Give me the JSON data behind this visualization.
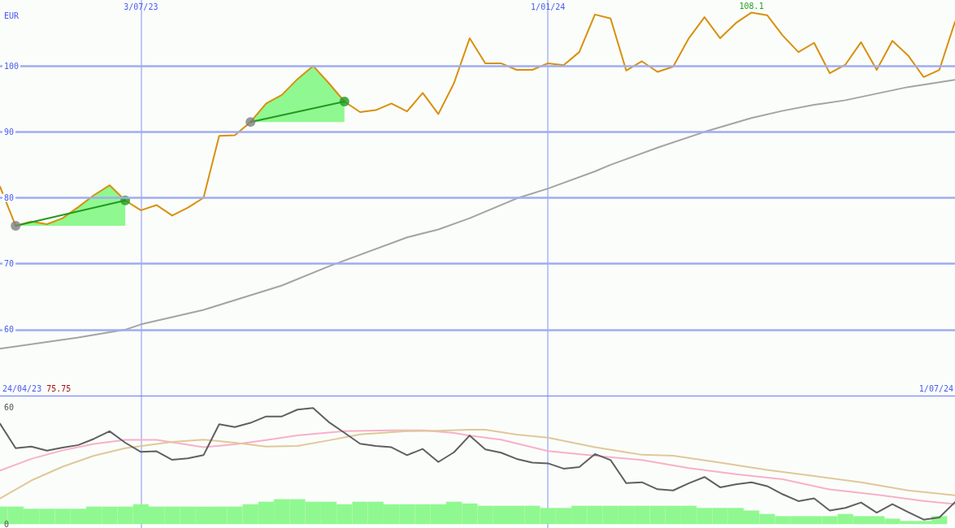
{
  "chart_data": [
    {
      "type": "line",
      "ylabel": "EUR",
      "x": [
        "2023-05-01",
        "2023-05-08",
        "2023-05-15",
        "2023-05-22",
        "2023-05-29",
        "2023-06-05",
        "2023-06-12",
        "2023-06-19",
        "2023-06-26",
        "2023-07-03",
        "2023-07-10",
        "2023-07-17",
        "2023-07-24",
        "2023-07-31",
        "2023-08-07",
        "2023-08-14",
        "2023-08-21",
        "2023-08-28",
        "2023-09-04",
        "2023-09-11",
        "2023-09-18",
        "2023-09-25",
        "2023-10-02",
        "2023-10-09",
        "2023-10-16",
        "2023-10-23",
        "2023-10-30",
        "2023-11-06",
        "2023-11-13",
        "2023-11-20",
        "2023-11-27",
        "2023-12-04",
        "2023-12-11",
        "2023-12-18",
        "2023-12-25",
        "2024-01-01",
        "2024-01-08",
        "2024-01-15",
        "2024-01-22",
        "2024-01-29",
        "2024-02-05",
        "2024-02-12",
        "2024-02-19",
        "2024-02-26",
        "2024-03-04",
        "2024-03-11",
        "2024-03-18",
        "2024-03-25",
        "2024-04-01",
        "2024-04-08",
        "2024-04-15",
        "2024-04-22",
        "2024-04-29",
        "2024-05-06",
        "2024-05-13",
        "2024-05-20",
        "2024-05-27",
        "2024-06-03",
        "2024-06-10",
        "2024-06-17",
        "2024-06-24",
        "2024-07-01"
      ],
      "xlim": [
        "2023-05-01",
        "2024-07-01"
      ],
      "xticks": [
        {
          "value": "2023-07-03",
          "label": "3/07/23"
        },
        {
          "value": "2024-01-01",
          "label": "1/01/24"
        }
      ],
      "ylim": [
        50,
        110
      ],
      "yticks": [
        60,
        70,
        80,
        90,
        100
      ],
      "grid": true,
      "marker": "none",
      "series": [
        {
          "color": "#a4a4a4",
          "x": [
            "2023-05-01",
            "2023-06-05",
            "2023-06-26",
            "2023-07-03",
            "2023-07-31",
            "2023-09-04",
            "2023-09-25",
            "2023-10-30",
            "2023-11-13",
            "2023-11-27",
            "2023-12-18",
            "2024-01-01",
            "2024-01-22",
            "2024-01-29",
            "2024-02-19",
            "2024-03-11",
            "2024-04-01",
            "2024-04-15",
            "2024-04-29",
            "2024-05-13",
            "2024-06-10",
            "2024-07-01"
          ],
          "values": [
            57.1,
            58.8,
            60.0,
            60.8,
            63.0,
            66.7,
            69.6,
            74.0,
            75.2,
            76.9,
            79.9,
            81.4,
            84.0,
            85.0,
            87.6,
            90.0,
            92.1,
            93.2,
            94.1,
            94.8,
            96.8,
            97.9
          ]
        },
        {
          "color": "#d8900c",
          "values": [
            81.7,
            75.75,
            76.4,
            76.0,
            76.9,
            78.6,
            80.4,
            81.9,
            79.6,
            78.1,
            78.9,
            77.3,
            78.5,
            80.0,
            89.4,
            89.5,
            91.5,
            94.3,
            95.6,
            98.0,
            100.0,
            97.4,
            94.6,
            93.0,
            93.3,
            94.3,
            93.1,
            95.9,
            92.7,
            97.4,
            104.2,
            100.4,
            100.4,
            99.4,
            99.4,
            100.4,
            100.1,
            102.1,
            107.8,
            107.2,
            99.3,
            100.7,
            99.1,
            99.9,
            104.2,
            107.4,
            104.2,
            106.5,
            108.1,
            107.7,
            104.6,
            102.1,
            103.5,
            98.9,
            100.2,
            103.6,
            99.4,
            103.8,
            101.6,
            98.3,
            99.4,
            106.7
          ],
          "lower": [
            null,
            75.75,
            75.75,
            75.75,
            75.75,
            75.75,
            75.75,
            75.75,
            75.75,
            null,
            null,
            null,
            null,
            null,
            null,
            null,
            91.5,
            91.5,
            91.5,
            91.5,
            91.5,
            91.5,
            91.5,
            null,
            null,
            null,
            null,
            null,
            null,
            null,
            null,
            null,
            null,
            null,
            null,
            null,
            null,
            null,
            null,
            null,
            null,
            null,
            null,
            null,
            null,
            null,
            null,
            null,
            null,
            null,
            null,
            null,
            null,
            null,
            null,
            null,
            null,
            null,
            null,
            null,
            null,
            null
          ],
          "upper": [
            null,
            75.75,
            76.4,
            76.0,
            76.9,
            78.6,
            80.4,
            81.9,
            79.6,
            null,
            null,
            null,
            null,
            null,
            null,
            null,
            91.5,
            94.3,
            95.6,
            98.0,
            100.0,
            97.4,
            94.6,
            null,
            null,
            null,
            null,
            null,
            null,
            null,
            null,
            null,
            null,
            null,
            null,
            null,
            null,
            null,
            null,
            null,
            null,
            null,
            null,
            null,
            null,
            null,
            null,
            null,
            null,
            null,
            null,
            null,
            null,
            null,
            null,
            null,
            null,
            null,
            null,
            null,
            null,
            null
          ]
        },
        {
          "type": "line",
          "color": "#229922",
          "x": [
            "2023-05-08",
            "2023-06-26"
          ],
          "values": [
            75.75,
            79.6
          ]
        },
        {
          "type": "line",
          "color": "#229922",
          "x": [
            "2023-08-21",
            "2023-10-02"
          ],
          "values": [
            91.5,
            94.6
          ]
        },
        {
          "type": "scatter",
          "color": "#808080",
          "marker": "circle",
          "x": [
            "2023-05-08",
            "2023-08-21"
          ],
          "values": [
            75.75,
            91.5
          ]
        },
        {
          "type": "scatter",
          "color": "#229922",
          "marker": "circle",
          "x": [
            "2023-06-26",
            "2023-10-02"
          ],
          "values": [
            79.6,
            94.6
          ]
        }
      ],
      "annotations": [
        "24/04/23",
        "75.75",
        "1/07/24",
        {
          "text": "108.1",
          "x": "2024-04-01",
          "y": 108.1
        }
      ]
    },
    {
      "type": "line",
      "x": [
        "2023-05-01",
        "2023-05-08",
        "2023-05-15",
        "2023-05-22",
        "2023-05-29",
        "2023-06-05",
        "2023-06-12",
        "2023-06-19",
        "2023-06-26",
        "2023-07-03",
        "2023-07-10",
        "2023-07-17",
        "2023-07-24",
        "2023-07-31",
        "2023-08-07",
        "2023-08-14",
        "2023-08-21",
        "2023-08-28",
        "2023-09-04",
        "2023-09-11",
        "2023-09-18",
        "2023-09-25",
        "2023-10-02",
        "2023-10-09",
        "2023-10-16",
        "2023-10-23",
        "2023-10-30",
        "2023-11-06",
        "2023-11-13",
        "2023-11-20",
        "2023-11-27",
        "2023-12-04",
        "2023-12-11",
        "2023-12-18",
        "2023-12-25",
        "2024-01-01",
        "2024-01-08",
        "2024-01-15",
        "2024-01-22",
        "2024-01-29",
        "2024-02-05",
        "2024-02-12",
        "2024-02-19",
        "2024-02-26",
        "2024-03-04",
        "2024-03-11",
        "2024-03-18",
        "2024-03-25",
        "2024-04-01",
        "2024-04-08",
        "2024-04-15",
        "2024-04-22",
        "2024-04-29",
        "2024-05-06",
        "2024-05-13",
        "2024-05-20",
        "2024-05-27",
        "2024-06-03",
        "2024-06-10",
        "2024-06-17",
        "2024-06-24",
        "2024-07-01"
      ],
      "xlim": [
        "2023-05-01",
        "2024-07-01"
      ],
      "xticks": [
        "2023-07-03",
        "2024-01-01"
      ],
      "ylim": [
        -2,
        66
      ],
      "yticks": [
        0,
        60
      ],
      "grid": "x",
      "marker": "none",
      "tick_labels": "y",
      "series": [
        {
          "type": "bar",
          "color": "#90f890",
          "values": [
            9.0,
            9.0,
            7.9,
            7.9,
            7.9,
            7.9,
            9.0,
            9.0,
            9.0,
            10.2,
            9.0,
            9.0,
            9.0,
            9.0,
            9.0,
            9.0,
            10.2,
            11.5,
            12.8,
            12.8,
            11.5,
            11.5,
            10.2,
            11.5,
            11.5,
            10.2,
            10.2,
            10.2,
            10.2,
            11.5,
            10.6,
            9.4,
            9.4,
            9.4,
            9.4,
            8.3,
            8.3,
            9.4,
            9.4,
            9.4,
            9.4,
            9.4,
            9.4,
            9.4,
            9.4,
            8.3,
            8.3,
            8.3,
            7.0,
            5.2,
            4.1,
            4.1,
            4.1,
            4.1,
            5.2,
            4.1,
            4.1,
            2.8,
            1.6,
            1.6,
            4.1,
            null
          ]
        },
        {
          "color": "#f8b0c8",
          "x": [
            "2023-05-01",
            "2023-05-15",
            "2023-05-29",
            "2023-06-12",
            "2023-06-26",
            "2023-07-10",
            "2023-07-17",
            "2023-07-31",
            "2023-08-14",
            "2023-08-28",
            "2023-09-11",
            "2023-10-02",
            "2023-10-23",
            "2023-11-06",
            "2023-11-20",
            "2023-11-27",
            "2023-12-11",
            "2024-01-01",
            "2024-01-22",
            "2024-02-12",
            "2024-03-04",
            "2024-03-25",
            "2024-04-15",
            "2024-05-06",
            "2024-05-27",
            "2024-06-17",
            "2024-07-01"
          ],
          "values": [
            27.5,
            33.5,
            37.9,
            41.2,
            43.3,
            43.3,
            42.0,
            39.5,
            41.0,
            43.2,
            45.6,
            47.7,
            48.2,
            48.2,
            46.8,
            45.5,
            43.4,
            37.5,
            35.1,
            32.9,
            28.8,
            25.6,
            23.0,
            17.8,
            15.1,
            11.9,
            10.3
          ]
        },
        {
          "color": "#e0c898",
          "x": [
            "2023-05-01",
            "2023-05-15",
            "2023-05-29",
            "2023-06-12",
            "2023-06-26",
            "2023-07-17",
            "2023-07-31",
            "2023-08-14",
            "2023-08-28",
            "2023-09-11",
            "2023-09-25",
            "2023-10-09",
            "2023-10-30",
            "2023-11-13",
            "2023-11-27",
            "2023-12-04",
            "2023-12-18",
            "2024-01-01",
            "2024-01-22",
            "2024-02-12",
            "2024-02-26",
            "2024-03-18",
            "2024-04-08",
            "2024-04-29",
            "2024-05-20",
            "2024-06-10",
            "2024-07-01"
          ],
          "values": [
            13.2,
            22.4,
            29.5,
            35.1,
            39.0,
            42.2,
            43.4,
            41.8,
            39.8,
            40.1,
            43.0,
            46.1,
            47.7,
            48.0,
            48.5,
            48.5,
            46.0,
            44.4,
            39.5,
            35.6,
            35.1,
            31.6,
            27.8,
            24.7,
            21.5,
            17.3,
            14.8
          ]
        },
        {
          "color": "#606060",
          "values": [
            51.6,
            39.0,
            39.8,
            37.7,
            39.3,
            40.6,
            43.8,
            47.7,
            41.8,
            37.1,
            37.4,
            33.0,
            33.8,
            35.4,
            51.3,
            49.8,
            52.0,
            55.3,
            55.3,
            58.8,
            59.6,
            52.4,
            46.9,
            41.3,
            40.1,
            39.5,
            35.4,
            38.6,
            31.9,
            36.9,
            45.5,
            38.4,
            36.7,
            33.5,
            31.6,
            31.2,
            28.5,
            29.3,
            36.0,
            32.9,
            21.0,
            21.5,
            17.9,
            17.3,
            21.0,
            24.2,
            18.9,
            20.4,
            21.5,
            19.5,
            15.3,
            11.8,
            13.2,
            7.0,
            8.3,
            11.1,
            5.9,
            10.3,
            6.2,
            2.3,
            3.4,
            11.3
          ]
        }
      ]
    }
  ]
}
